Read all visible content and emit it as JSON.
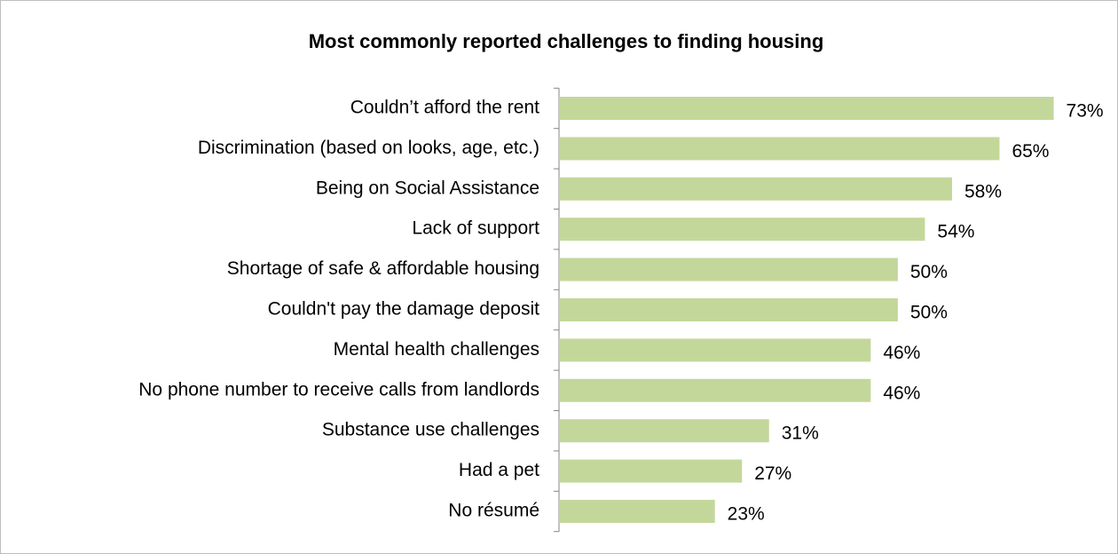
{
  "chart_data": {
    "type": "hbar",
    "title": "Most commonly reported challenges to finding housing",
    "categories": [
      "Couldn’t afford the rent",
      "Discrimination (based on looks, age, etc.)",
      "Being on Social Assistance",
      "Lack of support",
      "Shortage of safe & affordable housing",
      "Couldn't pay the damage deposit",
      "Mental health challenges",
      "No phone number to receive calls from landlords",
      "Substance use challenges",
      "Had a pet",
      "No résumé"
    ],
    "values": [
      73,
      65,
      58,
      54,
      50,
      50,
      46,
      46,
      31,
      27,
      23
    ],
    "value_labels": [
      "73%",
      "65%",
      "58%",
      "54%",
      "50%",
      "50%",
      "46%",
      "46%",
      "31%",
      "27%",
      "23%"
    ],
    "color": "#c4d79b",
    "xlim": [
      0,
      80
    ]
  }
}
